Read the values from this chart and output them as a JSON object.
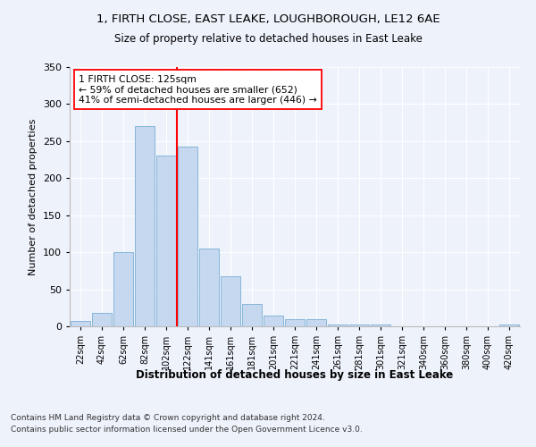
{
  "title_line1": "1, FIRTH CLOSE, EAST LEAKE, LOUGHBOROUGH, LE12 6AE",
  "title_line2": "Size of property relative to detached houses in East Leake",
  "xlabel": "Distribution of detached houses by size in East Leake",
  "ylabel": "Number of detached properties",
  "categories": [
    "22sqm",
    "42sqm",
    "62sqm",
    "82sqm",
    "102sqm",
    "122sqm",
    "141sqm",
    "161sqm",
    "181sqm",
    "201sqm",
    "221sqm",
    "241sqm",
    "261sqm",
    "281sqm",
    "301sqm",
    "321sqm",
    "340sqm",
    "360sqm",
    "380sqm",
    "400sqm",
    "420sqm"
  ],
  "values": [
    7,
    18,
    100,
    270,
    230,
    242,
    105,
    67,
    30,
    15,
    10,
    10,
    3,
    3,
    2,
    0,
    0,
    0,
    0,
    0,
    2
  ],
  "bar_color": "#c5d8f0",
  "bar_edge_color": "#7aafd4",
  "marker_color": "red",
  "annotation_text": "1 FIRTH CLOSE: 125sqm\n← 59% of detached houses are smaller (652)\n41% of semi-detached houses are larger (446) →",
  "footer_line1": "Contains HM Land Registry data © Crown copyright and database right 2024.",
  "footer_line2": "Contains public sector information licensed under the Open Government Licence v3.0.",
  "ylim": [
    0,
    350
  ],
  "yticks": [
    0,
    50,
    100,
    150,
    200,
    250,
    300,
    350
  ],
  "bg_color": "#eef2fb",
  "grid_color": "#ffffff"
}
